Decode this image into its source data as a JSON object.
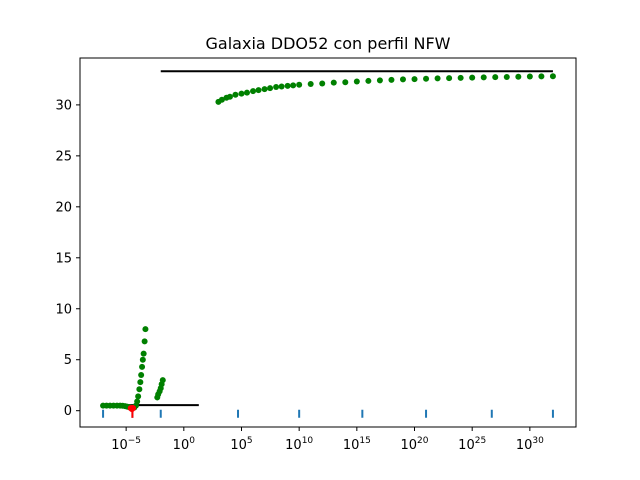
{
  "chart_data": {
    "type": "scatter",
    "title": "Galaxia DDO52 con perfil NFW",
    "xlabel": "",
    "ylabel": "",
    "x_scale": "log",
    "xlim": [
      1e-09,
      1e+34
    ],
    "ylim": [
      -1.6,
      34.6
    ],
    "grid": false,
    "legend": "none",
    "x_ticks": [
      {
        "value": 1e-05,
        "base": "10",
        "exp": "−5"
      },
      {
        "value": 1,
        "base": "10",
        "exp": "0"
      },
      {
        "value": 100000.0,
        "base": "10",
        "exp": "5"
      },
      {
        "value": 10000000000.0,
        "base": "10",
        "exp": "10"
      },
      {
        "value": 1000000000000000.0,
        "base": "10",
        "exp": "15"
      },
      {
        "value": 1e+20,
        "base": "10",
        "exp": "20"
      },
      {
        "value": 1e+25,
        "base": "10",
        "exp": "25"
      },
      {
        "value": 1e+30,
        "base": "10",
        "exp": "30"
      }
    ],
    "y_ticks": [
      {
        "value": 0,
        "label": "0"
      },
      {
        "value": 5,
        "label": "5"
      },
      {
        "value": 10,
        "label": "10"
      },
      {
        "value": 15,
        "label": "15"
      },
      {
        "value": 20,
        "label": "20"
      },
      {
        "value": 25,
        "label": "25"
      },
      {
        "value": 30,
        "label": "30"
      }
    ],
    "series": [
      {
        "color": "#008000",
        "marker": "circle",
        "points": [
          [
            1e-07,
            0.5
          ],
          [
            2e-07,
            0.5
          ],
          [
            4e-07,
            0.5
          ],
          [
            8e-07,
            0.5
          ],
          [
            1.6e-06,
            0.5
          ],
          [
            3e-06,
            0.5
          ],
          [
            5e-06,
            0.48
          ],
          [
            8e-06,
            0.45
          ],
          [
            1.2e-05,
            0.4
          ],
          [
            1.8e-05,
            0.35
          ],
          [
            2.5e-05,
            0.3
          ],
          [
            3.5e-05,
            0.25
          ],
          [
            5e-05,
            0.3
          ],
          [
            7e-05,
            0.5
          ],
          [
            9e-05,
            0.9
          ],
          [
            0.00011,
            1.4
          ],
          [
            0.00014,
            2.1
          ],
          [
            0.00017,
            2.8
          ],
          [
            0.0002,
            3.5
          ],
          [
            0.00024,
            4.3
          ],
          [
            0.00028,
            5.0
          ],
          [
            0.00033,
            5.6
          ],
          [
            0.0004,
            6.8
          ],
          [
            0.00047,
            8.0
          ],
          [
            0.005,
            1.3
          ],
          [
            0.006,
            1.6
          ],
          [
            0.008,
            1.9
          ],
          [
            0.01,
            2.2
          ],
          [
            0.012,
            2.6
          ],
          [
            0.015,
            3.0
          ],
          [
            1000.0,
            30.3
          ],
          [
            2000.0,
            30.5
          ],
          [
            5000.0,
            30.7
          ],
          [
            10000.0,
            30.8
          ],
          [
            30000.0,
            31.0
          ],
          [
            100000.0,
            31.1
          ],
          [
            300000.0,
            31.2
          ],
          [
            1000000.0,
            31.35
          ],
          [
            3000000.0,
            31.45
          ],
          [
            10000000.0,
            31.55
          ],
          [
            30000000.0,
            31.65
          ],
          [
            100000000.0,
            31.75
          ],
          [
            300000000.0,
            31.8
          ],
          [
            1000000000.0,
            31.87
          ],
          [
            3000000000.0,
            31.92
          ],
          [
            10000000000.0,
            31.97
          ],
          [
            100000000000.0,
            32.05
          ],
          [
            1000000000000.0,
            32.1
          ],
          [
            10000000000000.0,
            32.18
          ],
          [
            100000000000000.0,
            32.22
          ],
          [
            1000000000000000.0,
            32.3
          ],
          [
            1e+16,
            32.35
          ],
          [
            1e+17,
            32.4
          ],
          [
            1e+18,
            32.45
          ],
          [
            1e+19,
            32.5
          ],
          [
            1e+20,
            32.53
          ],
          [
            1e+21,
            32.57
          ],
          [
            1e+22,
            32.6
          ],
          [
            1e+23,
            32.62
          ],
          [
            1e+24,
            32.65
          ],
          [
            1e+25,
            32.68
          ],
          [
            1e+26,
            32.7
          ],
          [
            1e+27,
            32.72
          ],
          [
            1e+28,
            32.74
          ],
          [
            1e+29,
            32.76
          ],
          [
            1e+30,
            32.78
          ],
          [
            1e+31,
            32.8
          ],
          [
            1e+32,
            32.81
          ]
        ]
      },
      {
        "color": "#ff0000",
        "marker": "circle",
        "points": [
          [
            2.5e-05,
            0.25
          ],
          [
            3e-05,
            0.25
          ],
          [
            3.5e-05,
            0.28
          ],
          [
            4e-05,
            0.25
          ],
          [
            3.2e-05,
            0.15
          ]
        ]
      }
    ],
    "lines": [
      {
        "color": "#000000",
        "x": [
          1e-07,
          20.0
        ],
        "y": [
          0.55,
          0.55
        ]
      },
      {
        "color": "#000000",
        "x": [
          0.01,
          1e+32
        ],
        "y": [
          33.3,
          33.3
        ]
      }
    ],
    "rug_marks": {
      "color": "#1f77b4",
      "y": -0.3,
      "x": [
        1e-07,
        3.5e-05,
        0.01,
        50000.0,
        10000000000.0,
        3000000000000000.0,
        1e+21,
        5e+26,
        1e+32
      ]
    },
    "red_stem": {
      "color": "#ff0000",
      "x": 3.5e-05,
      "y": [
        -0.7,
        0.3
      ]
    }
  }
}
